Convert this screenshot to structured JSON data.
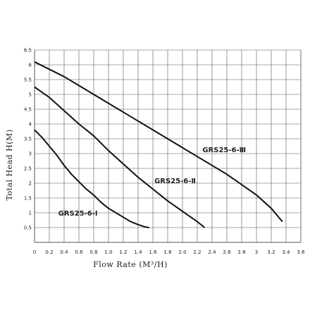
{
  "chart_data": {
    "type": "line",
    "title": "",
    "xlabel": "Flow Rate (M³/H)",
    "ylabel": "Total Head H(M)",
    "xlim": [
      0,
      3.6
    ],
    "ylim": [
      0,
      6.5
    ],
    "xticks": [
      "0",
      "0.2",
      "0.4",
      "0.6",
      "0.8",
      "1.0",
      "1.2",
      "1.4",
      "1.6",
      "1.8",
      "2.0",
      "2.2",
      "2.4",
      "2.6",
      "2.8",
      "3",
      "3.2",
      "3.4",
      "3.6"
    ],
    "yticks": [
      "0.5",
      "1",
      "1.5",
      "2",
      "2.5",
      "3",
      "3.5",
      "4",
      "4.5",
      "5",
      "5.5",
      "6",
      "6.5"
    ],
    "grid": true,
    "line_color": "#111111",
    "grid_color": "#555555",
    "series": [
      {
        "name": "GRS25-6-Ⅰ",
        "x": [
          0,
          0.1,
          0.2,
          0.3,
          0.4,
          0.5,
          0.6,
          0.7,
          0.8,
          0.9,
          1.0,
          1.1,
          1.2,
          1.3,
          1.4,
          1.5,
          1.55
        ],
        "y": [
          3.8,
          3.55,
          3.25,
          2.95,
          2.6,
          2.3,
          2.05,
          1.8,
          1.6,
          1.35,
          1.15,
          1.0,
          0.85,
          0.7,
          0.6,
          0.52,
          0.5
        ]
      },
      {
        "name": "GRS25-6-Ⅱ",
        "x": [
          0,
          0.2,
          0.4,
          0.6,
          0.8,
          1.0,
          1.2,
          1.4,
          1.6,
          1.8,
          2.0,
          2.2,
          2.3
        ],
        "y": [
          5.25,
          4.9,
          4.45,
          4.0,
          3.6,
          3.1,
          2.65,
          2.2,
          1.8,
          1.4,
          1.05,
          0.7,
          0.5
        ]
      },
      {
        "name": "GRS25-6-Ⅲ",
        "x": [
          0,
          0.2,
          0.4,
          0.6,
          0.8,
          1.0,
          1.2,
          1.4,
          1.6,
          1.8,
          2.0,
          2.2,
          2.4,
          2.6,
          2.8,
          3.0,
          3.2,
          3.35
        ],
        "y": [
          6.1,
          5.85,
          5.6,
          5.3,
          5.0,
          4.7,
          4.4,
          4.1,
          3.8,
          3.5,
          3.2,
          2.9,
          2.6,
          2.3,
          1.95,
          1.6,
          1.15,
          0.7
        ]
      }
    ]
  }
}
